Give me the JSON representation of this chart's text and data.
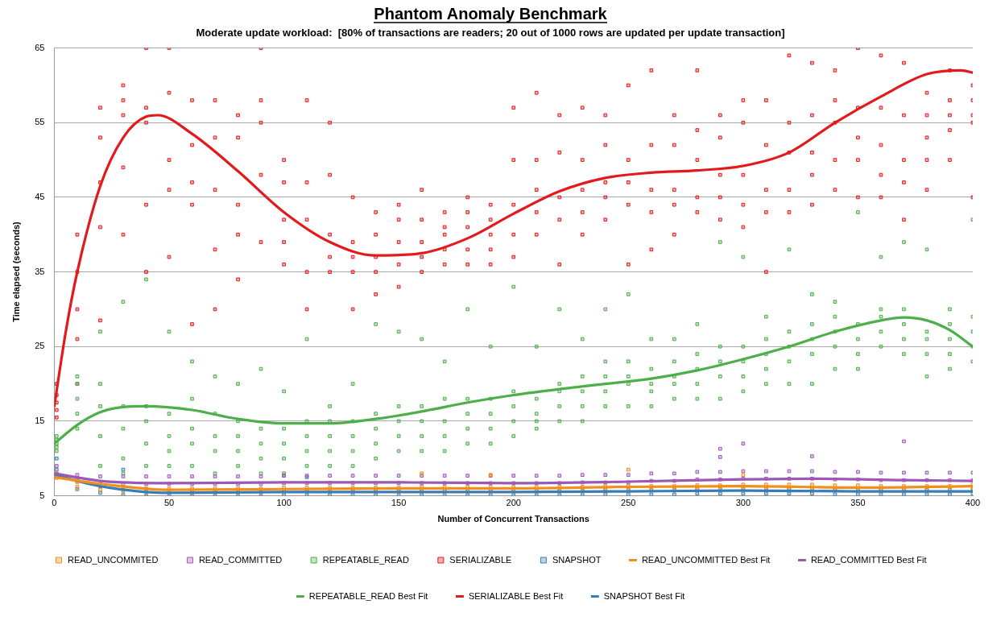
{
  "chart_data": {
    "type": "scatter",
    "title": "Phantom Anomaly Benchmark",
    "subtitle": "Moderate update workload:  [80% of transactions are readers; 20 out of 1000 rows are updated per update transaction]",
    "xlabel": "Number of Concurrent Transactions",
    "ylabel": "Time elapsed (seconds)",
    "xlim": [
      0,
      400
    ],
    "xticks": [
      0,
      50,
      100,
      150,
      200,
      250,
      300,
      350,
      400
    ],
    "ylim": [
      5,
      65
    ],
    "yticks": [
      5,
      15,
      25,
      35,
      45,
      55,
      65
    ],
    "grid": "y",
    "legend": "bottom",
    "marker": "square",
    "series": [
      {
        "name": "READ_UNCOMMITED",
        "type": "scatter",
        "color": "#f28e1c",
        "x": [
          1,
          1,
          10,
          10,
          20,
          20,
          30,
          30,
          40,
          40,
          50,
          50,
          60,
          60,
          70,
          70,
          80,
          80,
          90,
          90,
          100,
          100,
          110,
          110,
          120,
          120,
          130,
          130,
          140,
          140,
          150,
          150,
          160,
          160,
          170,
          170,
          180,
          180,
          190,
          190,
          200,
          200,
          210,
          210,
          220,
          220,
          230,
          230,
          240,
          240,
          250,
          250,
          260,
          260,
          270,
          270,
          280,
          280,
          290,
          290,
          300,
          300,
          310,
          310,
          320,
          320,
          330,
          330,
          340,
          340,
          350,
          350,
          360,
          360,
          370,
          370,
          380,
          380,
          390,
          390,
          400,
          400,
          160,
          190,
          250,
          300
        ],
        "values": [
          8,
          7.4,
          6.8,
          6.2,
          6.4,
          5.8,
          6.2,
          5.6,
          6,
          5.5,
          6,
          5.5,
          6,
          5.5,
          6,
          5.5,
          6,
          5.5,
          6,
          5.5,
          6.1,
          5.6,
          6.1,
          5.6,
          6.1,
          5.6,
          6.1,
          5.6,
          6.1,
          5.6,
          6.1,
          5.6,
          6.2,
          5.7,
          6.2,
          5.7,
          6.2,
          5.7,
          6.2,
          5.7,
          6.2,
          5.7,
          6.2,
          5.7,
          6.2,
          5.7,
          6.2,
          5.7,
          6.3,
          5.8,
          6.3,
          5.8,
          6.3,
          5.8,
          6.3,
          5.8,
          6.4,
          5.9,
          6.4,
          5.9,
          6.5,
          5.9,
          6.5,
          5.9,
          6.5,
          5.9,
          6.5,
          5.9,
          6.4,
          5.8,
          6.4,
          5.8,
          6.3,
          5.8,
          6.3,
          5.8,
          6.3,
          5.8,
          6.3,
          5.8,
          6.5,
          5.9,
          8,
          7.8,
          8.5,
          7.8
        ]
      },
      {
        "name": "READ_COMMITTED",
        "type": "scatter",
        "color": "#9b59b6",
        "x": [
          1,
          1,
          10,
          10,
          20,
          20,
          30,
          30,
          40,
          40,
          50,
          50,
          60,
          60,
          70,
          70,
          80,
          80,
          90,
          90,
          100,
          100,
          110,
          110,
          120,
          120,
          130,
          130,
          140,
          140,
          150,
          150,
          160,
          160,
          170,
          170,
          180,
          180,
          190,
          190,
          200,
          200,
          210,
          210,
          220,
          220,
          230,
          230,
          240,
          240,
          250,
          250,
          260,
          260,
          270,
          270,
          280,
          280,
          290,
          290,
          300,
          300,
          310,
          310,
          320,
          320,
          330,
          330,
          340,
          340,
          350,
          350,
          360,
          360,
          370,
          370,
          380,
          380,
          390,
          390,
          400,
          400,
          290,
          290,
          300,
          330,
          370
        ],
        "values": [
          9,
          8,
          7.8,
          7,
          7.6,
          6.6,
          7.6,
          6.6,
          7.6,
          6.6,
          7.6,
          6.6,
          7.6,
          6.6,
          7.6,
          6.6,
          7.6,
          6.6,
          7.6,
          6.6,
          7.7,
          6.7,
          7.7,
          6.7,
          7.7,
          6.7,
          7.7,
          6.7,
          7.7,
          6.7,
          7.7,
          6.7,
          7.7,
          6.7,
          7.7,
          6.7,
          7.7,
          6.7,
          7.7,
          6.7,
          7.7,
          6.7,
          7.7,
          6.7,
          7.7,
          6.7,
          7.8,
          6.8,
          7.8,
          6.8,
          7.8,
          6.8,
          8,
          7,
          8,
          7,
          8.2,
          7.2,
          8.2,
          7.2,
          8.3,
          7.3,
          8.3,
          7.3,
          8.3,
          7.3,
          8.3,
          7.3,
          8.2,
          7.2,
          8.2,
          7.2,
          8.1,
          7.1,
          8.1,
          7.1,
          8.1,
          7.1,
          8.1,
          7.1,
          8.1,
          7.1,
          11.3,
          10.2,
          12,
          10.3,
          12.3
        ]
      },
      {
        "name": "REPEATABLE_READ",
        "type": "scatter",
        "color": "#4daf4a",
        "x": [
          1,
          1,
          1,
          1,
          1,
          10,
          10,
          10,
          10,
          10,
          20,
          20,
          20,
          20,
          20,
          30,
          30,
          30,
          30,
          30,
          40,
          40,
          40,
          40,
          40,
          50,
          50,
          50,
          50,
          50,
          60,
          60,
          60,
          60,
          60,
          70,
          70,
          70,
          70,
          70,
          80,
          80,
          80,
          80,
          80,
          90,
          90,
          90,
          90,
          90,
          100,
          100,
          100,
          100,
          100,
          110,
          110,
          110,
          110,
          110,
          120,
          120,
          120,
          120,
          120,
          130,
          130,
          130,
          130,
          130,
          140,
          140,
          140,
          140,
          140,
          150,
          150,
          150,
          150,
          150,
          160,
          160,
          160,
          160,
          160,
          170,
          170,
          170,
          170,
          170,
          180,
          180,
          180,
          180,
          180,
          190,
          190,
          190,
          190,
          190,
          200,
          200,
          200,
          200,
          200,
          210,
          210,
          210,
          210,
          210,
          220,
          220,
          220,
          220,
          220,
          230,
          230,
          230,
          230,
          230,
          240,
          240,
          240,
          240,
          240,
          250,
          250,
          250,
          250,
          250,
          260,
          260,
          260,
          260,
          260,
          270,
          270,
          270,
          270,
          270,
          280,
          280,
          280,
          280,
          280,
          290,
          290,
          290,
          290,
          290,
          300,
          300,
          300,
          300,
          300,
          310,
          310,
          310,
          310,
          310,
          320,
          320,
          320,
          320,
          320,
          330,
          330,
          330,
          330,
          330,
          340,
          340,
          340,
          340,
          340,
          350,
          350,
          350,
          350,
          350,
          360,
          360,
          360,
          360,
          360,
          370,
          370,
          370,
          370,
          370,
          380,
          380,
          380,
          380,
          380,
          390,
          390,
          390,
          390,
          390,
          400,
          400,
          400,
          400,
          400
        ],
        "values": [
          11,
          11.5,
          12,
          12.5,
          13,
          14,
          16,
          18,
          20,
          21,
          9,
          13,
          17,
          20,
          27,
          8,
          10,
          14,
          17,
          31,
          9,
          12,
          15,
          17,
          34,
          9,
          11,
          13,
          16,
          27,
          9,
          12,
          14,
          18,
          23,
          8,
          11,
          13,
          16,
          21,
          9,
          11,
          13,
          15,
          20,
          8,
          10,
          12,
          14,
          22,
          8,
          10,
          12,
          14,
          19,
          9,
          11,
          13,
          15,
          26,
          9,
          11,
          13,
          15,
          17,
          9,
          11,
          13,
          15,
          20,
          10,
          12,
          14,
          16,
          28,
          11,
          13,
          15,
          17,
          27,
          11,
          13,
          15,
          17,
          26,
          11,
          13,
          15,
          18,
          23,
          12,
          14,
          16,
          18,
          30,
          12,
          14,
          16,
          18,
          25,
          13,
          15,
          17,
          19,
          33,
          14,
          15,
          16,
          18,
          25,
          15,
          17,
          19,
          20,
          30,
          15,
          17,
          19,
          21,
          26,
          17,
          19,
          21,
          23,
          30,
          17,
          20,
          21,
          23,
          32,
          17,
          19,
          20,
          22,
          26,
          18,
          20,
          21,
          23,
          26,
          18,
          20,
          22,
          24,
          28,
          18,
          21,
          23,
          25,
          39,
          19,
          21,
          23,
          25,
          37,
          20,
          22,
          24,
          26,
          29,
          20,
          23,
          25,
          27,
          38,
          20,
          24,
          26,
          28,
          32,
          22,
          25,
          27,
          29,
          31,
          22,
          24,
          26,
          28,
          43,
          25,
          27,
          29,
          30,
          37,
          24,
          26,
          28,
          30,
          39,
          21,
          24,
          26,
          27,
          38,
          22,
          24,
          26,
          28,
          30,
          23,
          25,
          27,
          29,
          42
        ]
      },
      {
        "name": "SERIALIZABLE",
        "type": "scatter",
        "color": "#e31a1c",
        "x": [
          1,
          1,
          1,
          1,
          1,
          10,
          10,
          10,
          10,
          10,
          20,
          20,
          20,
          20,
          20,
          30,
          30,
          30,
          30,
          30,
          40,
          40,
          40,
          40,
          40,
          50,
          50,
          50,
          50,
          50,
          60,
          60,
          60,
          60,
          60,
          70,
          70,
          70,
          70,
          70,
          80,
          80,
          80,
          80,
          80,
          90,
          90,
          90,
          90,
          90,
          100,
          100,
          100,
          100,
          100,
          110,
          110,
          110,
          110,
          110,
          120,
          120,
          120,
          120,
          120,
          130,
          130,
          130,
          130,
          130,
          140,
          140,
          140,
          140,
          140,
          150,
          150,
          150,
          150,
          150,
          160,
          160,
          160,
          160,
          160,
          170,
          170,
          170,
          170,
          170,
          180,
          180,
          180,
          180,
          180,
          190,
          190,
          190,
          190,
          190,
          200,
          200,
          200,
          200,
          200,
          210,
          210,
          210,
          210,
          210,
          220,
          220,
          220,
          220,
          220,
          230,
          230,
          230,
          230,
          230,
          240,
          240,
          240,
          240,
          240,
          250,
          250,
          250,
          250,
          250,
          260,
          260,
          260,
          260,
          260,
          270,
          270,
          270,
          270,
          270,
          280,
          280,
          280,
          280,
          280,
          290,
          290,
          290,
          290,
          290,
          300,
          300,
          300,
          300,
          300,
          310,
          310,
          310,
          310,
          310,
          320,
          320,
          320,
          320,
          320,
          330,
          330,
          330,
          330,
          330,
          340,
          340,
          340,
          340,
          340,
          350,
          350,
          350,
          350,
          350,
          360,
          360,
          360,
          360,
          360,
          370,
          370,
          370,
          370,
          370,
          380,
          380,
          380,
          380,
          380,
          390,
          390,
          390,
          390,
          390,
          400,
          400,
          400,
          400,
          400
        ],
        "values": [
          15.5,
          16.5,
          17.5,
          18.5,
          20,
          20,
          26,
          30,
          35,
          40,
          28.5,
          41,
          47,
          53,
          57,
          40,
          49,
          56,
          58,
          60,
          35,
          44,
          55,
          57,
          65,
          37,
          46,
          50,
          59,
          65,
          28,
          44,
          47,
          52,
          58,
          30,
          38,
          46,
          53,
          58,
          34,
          40,
          44,
          53,
          56,
          39,
          48,
          55,
          58,
          65,
          36,
          39,
          42,
          47,
          50,
          30,
          35,
          42,
          47,
          58,
          35,
          37,
          40,
          48,
          55,
          30,
          35,
          37,
          39,
          45,
          32,
          35,
          37,
          40,
          43,
          33,
          36,
          39,
          42,
          44,
          35,
          37,
          39,
          42,
          46,
          36,
          38,
          40,
          41,
          43,
          36,
          38,
          41,
          43,
          45,
          36,
          38,
          40,
          42,
          44,
          37,
          40,
          44,
          50,
          57,
          40,
          43,
          46,
          50,
          59,
          36,
          42,
          45,
          51,
          56,
          40,
          43,
          46,
          50,
          57,
          42,
          45,
          47,
          52,
          56,
          36,
          44,
          47,
          50,
          60,
          38,
          43,
          46,
          52,
          62,
          40,
          44,
          46,
          52,
          56,
          43,
          45,
          50,
          54,
          62,
          42,
          45,
          48,
          53,
          56,
          41,
          44,
          48,
          55,
          58,
          35,
          43,
          46,
          52,
          58,
          43,
          46,
          51,
          55,
          64,
          44,
          48,
          51,
          56,
          63,
          46,
          50,
          55,
          58,
          62,
          45,
          50,
          53,
          57,
          65,
          45,
          48,
          52,
          57,
          64,
          42,
          47,
          50,
          56,
          63,
          46,
          50,
          53,
          56,
          59,
          50,
          54,
          56,
          58,
          62,
          45,
          55,
          56,
          58,
          60
        ]
      },
      {
        "name": "SNAPSHOT",
        "type": "scatter",
        "color": "#377eb8",
        "x": [
          1,
          1,
          10,
          10,
          20,
          20,
          30,
          30,
          40,
          40,
          50,
          50,
          60,
          60,
          70,
          70,
          80,
          80,
          90,
          90,
          100,
          100,
          110,
          110,
          120,
          120,
          130,
          130,
          140,
          140,
          150,
          150,
          160,
          160,
          170,
          170,
          180,
          180,
          190,
          190,
          200,
          200,
          210,
          210,
          220,
          220,
          230,
          230,
          240,
          240,
          250,
          250,
          260,
          260,
          270,
          270,
          280,
          280,
          290,
          290,
          300,
          300,
          310,
          310,
          320,
          320,
          330,
          330,
          340,
          340,
          350,
          350,
          360,
          360,
          370,
          370,
          380,
          380,
          390,
          390,
          400,
          400,
          30,
          100,
          110
        ],
        "values": [
          10,
          8.5,
          7.2,
          5.9,
          6.3,
          5.4,
          5.8,
          5.1,
          5.6,
          5,
          5.6,
          5,
          5.6,
          5,
          5.6,
          5,
          5.6,
          5,
          5.6,
          5,
          5.7,
          5.1,
          5.7,
          5.1,
          5.7,
          5.1,
          5.7,
          5.1,
          5.7,
          5.1,
          5.7,
          5.1,
          5.7,
          5.1,
          5.7,
          5.1,
          5.7,
          5.1,
          5.7,
          5.1,
          5.7,
          5.1,
          5.7,
          5.1,
          5.7,
          5.1,
          5.7,
          5.1,
          5.8,
          5.2,
          5.8,
          5.2,
          5.8,
          5.2,
          5.8,
          5.2,
          5.9,
          5.3,
          5.9,
          5.3,
          5.9,
          5.3,
          5.9,
          5.3,
          5.9,
          5.3,
          5.9,
          5.3,
          5.8,
          5.2,
          5.8,
          5.2,
          5.8,
          5.2,
          5.8,
          5.2,
          5.8,
          5.2,
          5.8,
          5.2,
          5.9,
          5.3,
          8.5,
          7.7,
          7.5
        ]
      },
      {
        "name": "READ_UNCOMMITTED Best Fit",
        "type": "line",
        "marker": "none",
        "color": "#f28e1c",
        "x": [
          0,
          20,
          50,
          100,
          150,
          200,
          250,
          300,
          350,
          400
        ],
        "values": [
          7.5,
          6.6,
          5.8,
          5.9,
          6,
          6,
          6.2,
          6.3,
          6.1,
          6.3
        ]
      },
      {
        "name": "READ_COMMITTED Best Fit",
        "type": "line",
        "marker": "none",
        "color": "#9b59b6",
        "x": [
          0,
          20,
          50,
          100,
          150,
          200,
          250,
          300,
          330,
          370,
          400
        ],
        "values": [
          8,
          7,
          6.7,
          6.8,
          6.8,
          6.7,
          6.9,
          7.2,
          7.3,
          7.1,
          7
        ]
      },
      {
        "name": "REPEATABLE_READ Best Fit",
        "type": "line",
        "marker": "none",
        "color": "#4daf4a",
        "x": [
          0,
          10,
          20,
          30,
          40,
          60,
          80,
          100,
          120,
          140,
          160,
          180,
          200,
          220,
          240,
          260,
          280,
          300,
          320,
          340,
          360,
          370,
          380,
          390,
          400
        ],
        "values": [
          12,
          14.5,
          16.2,
          16.9,
          17,
          16.5,
          15.3,
          14.7,
          14.7,
          15.3,
          16.3,
          17.5,
          18.5,
          19.3,
          20,
          20.7,
          21.8,
          23.3,
          25,
          27,
          28.5,
          28.9,
          28.5,
          27.2,
          25
        ]
      },
      {
        "name": "SERIALIZABLE Best Fit",
        "type": "line",
        "marker": "none",
        "color": "#e31a1c",
        "x": [
          0,
          5,
          10,
          20,
          30,
          40,
          45,
          60,
          80,
          100,
          120,
          140,
          160,
          180,
          200,
          220,
          240,
          260,
          280,
          300,
          320,
          340,
          360,
          380,
          395,
          400
        ],
        "values": [
          17,
          27,
          35,
          46.5,
          53,
          55.8,
          56,
          53.5,
          48.5,
          43,
          39,
          37.2,
          37.5,
          39.5,
          42.8,
          45.8,
          47.6,
          48.3,
          48.6,
          49.2,
          51,
          55,
          58.5,
          61.5,
          62,
          61.7
        ]
      },
      {
        "name": "SNAPSHOT Best Fit",
        "type": "line",
        "marker": "none",
        "color": "#377eb8",
        "x": [
          0,
          20,
          50,
          100,
          150,
          200,
          250,
          300,
          350,
          400
        ],
        "values": [
          7.8,
          6.3,
          5.4,
          5.5,
          5.5,
          5.5,
          5.6,
          5.7,
          5.6,
          5.6
        ]
      }
    ]
  }
}
